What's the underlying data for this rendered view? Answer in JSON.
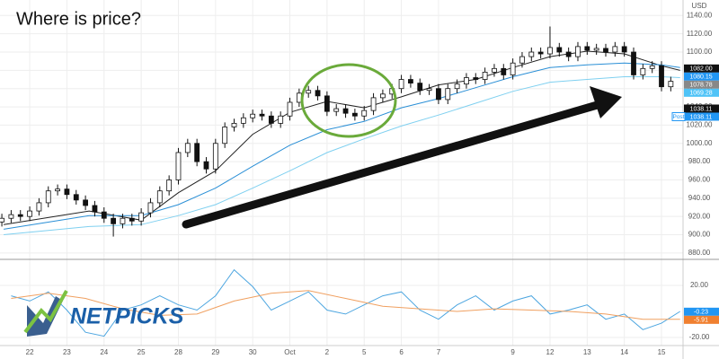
{
  "chart_data": [
    {
      "type": "candlestick",
      "title": "Where is price?",
      "currency": "USD",
      "watermark": "NETPICKS",
      "xlim": [
        -0.8,
        17.58
      ],
      "ylim": [
        874,
        1157
      ],
      "yticks": [
        {
          "value": 880,
          "label": "880.00"
        },
        {
          "value": 900,
          "label": "900.00"
        },
        {
          "value": 920,
          "label": "920.00"
        },
        {
          "value": 940,
          "label": "940.00"
        },
        {
          "value": 960,
          "label": "960.00"
        },
        {
          "value": 980,
          "label": "980.00"
        },
        {
          "value": 1000,
          "label": "1000.00"
        },
        {
          "value": 1020,
          "label": "1020.00"
        },
        {
          "value": 1040,
          "label": "1040.00"
        },
        {
          "value": 1060,
          "label": "1060.00"
        },
        {
          "value": 1080,
          "label": "1080.00"
        },
        {
          "value": 1100,
          "label": "1100.00"
        },
        {
          "value": 1120,
          "label": "1120.00"
        },
        {
          "value": 1140,
          "label": "1140.00"
        }
      ],
      "candles": {
        "up_color": "#ffffff",
        "down_color": "#111111",
        "x": [
          -0.75,
          -0.5,
          -0.25,
          0,
          0.25,
          0.5,
          0.75,
          1,
          1.25,
          1.5,
          1.75,
          2,
          2.25,
          2.5,
          2.75,
          3,
          3.25,
          3.5,
          3.75,
          4,
          4.25,
          4.5,
          4.75,
          5,
          5.25,
          5.5,
          5.75,
          6,
          6.25,
          6.5,
          6.75,
          7,
          7.25,
          7.5,
          7.75,
          8,
          8.25,
          8.5,
          8.75,
          9,
          9.25,
          9.5,
          9.75,
          10,
          10.25,
          10.5,
          10.75,
          11,
          11.25,
          11.5,
          11.75,
          12,
          12.25,
          12.5,
          12.75,
          13,
          13.25,
          13.5,
          13.75,
          14,
          14.25,
          14.5,
          14.75,
          15,
          15.25,
          15.5,
          15.75,
          16,
          16.25,
          16.5,
          16.75,
          17,
          17.25
        ],
        "open": [
          914,
          918,
          922,
          920,
          926,
          935,
          948,
          950,
          944,
          938,
          932,
          925,
          918,
          912,
          918,
          915,
          924,
          935,
          948,
          960,
          990,
          1000,
          980,
          972,
          1000,
          1018,
          1022,
          1028,
          1032,
          1030,
          1022,
          1030,
          1045,
          1055,
          1058,
          1052,
          1035,
          1038,
          1033,
          1030,
          1036,
          1050,
          1054,
          1060,
          1070,
          1066,
          1058,
          1060,
          1048,
          1060,
          1065,
          1072,
          1070,
          1078,
          1082,
          1075,
          1088,
          1095,
          1100,
          1098,
          1105,
          1100,
          1095,
          1106,
          1102,
          1104,
          1100,
          1106,
          1100,
          1075,
          1082,
          1085,
          1062
        ],
        "high": [
          923,
          927,
          927,
          931,
          940,
          953,
          955,
          955,
          949,
          943,
          937,
          930,
          923,
          923,
          923,
          929,
          940,
          953,
          965,
          995,
          1005,
          1005,
          985,
          1005,
          1023,
          1027,
          1033,
          1037,
          1037,
          1035,
          1035,
          1050,
          1060,
          1063,
          1063,
          1057,
          1043,
          1043,
          1038,
          1041,
          1055,
          1059,
          1065,
          1075,
          1075,
          1071,
          1065,
          1065,
          1065,
          1070,
          1077,
          1077,
          1083,
          1087,
          1087,
          1093,
          1100,
          1105,
          1105,
          1128,
          1110,
          1105,
          1111,
          1111,
          1109,
          1109,
          1111,
          1111,
          1105,
          1087,
          1090,
          1090,
          1073
        ],
        "low": [
          909,
          913,
          915,
          915,
          921,
          930,
          943,
          939,
          933,
          927,
          920,
          913,
          898,
          907,
          910,
          910,
          919,
          930,
          943,
          955,
          985,
          975,
          967,
          967,
          995,
          1013,
          1017,
          1023,
          1025,
          1017,
          1017,
          1025,
          1040,
          1050,
          1047,
          1030,
          1030,
          1028,
          1025,
          1025,
          1031,
          1045,
          1049,
          1055,
          1061,
          1053,
          1053,
          1043,
          1043,
          1055,
          1060,
          1065,
          1065,
          1073,
          1070,
          1070,
          1083,
          1090,
          1093,
          1093,
          1095,
          1090,
          1090,
          1097,
          1097,
          1095,
          1095,
          1095,
          1070,
          1070,
          1077,
          1057,
          1057
        ],
        "close": [
          918,
          922,
          920,
          926,
          935,
          948,
          950,
          944,
          938,
          932,
          925,
          918,
          912,
          918,
          915,
          924,
          935,
          948,
          960,
          990,
          1000,
          980,
          972,
          1000,
          1018,
          1022,
          1028,
          1032,
          1030,
          1022,
          1030,
          1045,
          1055,
          1058,
          1052,
          1035,
          1038,
          1033,
          1030,
          1036,
          1050,
          1054,
          1060,
          1070,
          1066,
          1058,
          1060,
          1048,
          1060,
          1065,
          1072,
          1070,
          1078,
          1082,
          1075,
          1088,
          1095,
          1100,
          1098,
          1105,
          1100,
          1095,
          1106,
          1102,
          1104,
          1100,
          1106,
          1100,
          1075,
          1082,
          1085,
          1062,
          1068
        ]
      },
      "series": [
        {
          "color": "#222222",
          "x": [
            -0.7,
            1.6,
            3,
            4,
            5,
            6,
            7,
            8,
            9,
            10,
            11,
            12,
            13,
            14,
            15,
            16,
            17,
            17.5
          ],
          "values": [
            911,
            926,
            916,
            946,
            970,
            1010,
            1034,
            1046,
            1039,
            1051,
            1064,
            1070,
            1083,
            1095,
            1101,
            1098,
            1085,
            1080
          ]
        },
        {
          "color": "#2a8fd6",
          "x": [
            -0.7,
            1.6,
            3,
            4,
            5,
            6,
            7,
            8,
            9,
            10,
            11,
            12,
            13,
            14,
            15,
            16,
            17,
            17.5
          ],
          "values": [
            906,
            921,
            921,
            933,
            951,
            975,
            998,
            1015,
            1024,
            1039,
            1049,
            1061,
            1073,
            1083,
            1086,
            1088,
            1086,
            1083
          ]
        },
        {
          "color": "#7fd0f0",
          "x": [
            -0.7,
            1.6,
            3,
            4,
            5,
            6,
            7,
            8,
            9,
            10,
            11,
            12,
            13,
            14,
            15,
            16,
            17,
            17.5
          ],
          "values": [
            900,
            909,
            911,
            921,
            933,
            951,
            970,
            990,
            1005,
            1019,
            1031,
            1044,
            1057,
            1067,
            1070,
            1073,
            1073,
            1072
          ]
        }
      ],
      "price_labels": [
        {
          "value": 1082,
          "label": "1082.00",
          "color": "#111111"
        },
        {
          "value": 1080.15,
          "color": "#2196f3"
        },
        {
          "value": 1078.78,
          "color": "#888888"
        },
        {
          "value": 1069.28,
          "color": "#4fc3f7"
        },
        {
          "value": 1038.11,
          "color": "#111111"
        },
        {
          "prefix": "Post",
          "value": 1038.11,
          "color": "#2196f3"
        }
      ]
    },
    {
      "type": "line",
      "xlim": [
        -0.8,
        17.58
      ],
      "ylim": [
        -26.2,
        39.3
      ],
      "yticks": [
        {
          "value": 20,
          "label": "20.00"
        },
        {
          "value": -20,
          "label": "-20.00"
        }
      ],
      "xticks": [
        {
          "value": 0,
          "label": "22"
        },
        {
          "value": 1,
          "label": "23"
        },
        {
          "value": 2,
          "label": "24"
        },
        {
          "value": 3,
          "label": "25"
        },
        {
          "value": 4,
          "label": "28"
        },
        {
          "value": 5,
          "label": "29"
        },
        {
          "value": 6,
          "label": "30"
        },
        {
          "value": 7,
          "label": "Oct"
        },
        {
          "value": 8,
          "label": "2"
        },
        {
          "value": 9,
          "label": "5"
        },
        {
          "value": 10,
          "label": "6"
        },
        {
          "value": 11,
          "label": "7"
        },
        {
          "value": 13,
          "label": "9"
        },
        {
          "value": 14,
          "label": "12"
        },
        {
          "value": 15,
          "label": "13"
        },
        {
          "value": 16,
          "label": "14"
        },
        {
          "value": 17,
          "label": "15"
        }
      ],
      "series": [
        {
          "color": "#4da6e0",
          "x": [
            -0.5,
            0,
            0.5,
            1,
            1.5,
            2,
            2.5,
            3,
            3.5,
            4,
            4.5,
            5,
            5.5,
            6,
            6.5,
            7,
            7.5,
            8,
            8.5,
            9,
            9.5,
            10,
            10.5,
            11,
            11.5,
            12,
            12.5,
            13,
            13.5,
            14,
            14.5,
            15,
            15.5,
            16,
            16.5,
            17,
            17.5
          ],
          "values": [
            12,
            8,
            15,
            1,
            -16,
            -19,
            1,
            5,
            12,
            5,
            1,
            12,
            32,
            19,
            1,
            8,
            15,
            1,
            -2,
            5,
            12,
            15,
            1,
            -6,
            5,
            12,
            1,
            8,
            12,
            -2,
            1,
            5,
            -6,
            -2,
            -14,
            -9,
            0
          ]
        },
        {
          "color": "#f0a060",
          "x": [
            -0.5,
            0.5,
            1.5,
            2.5,
            3.5,
            4.5,
            5.5,
            6.5,
            7.5,
            8.5,
            9.5,
            10.5,
            11.5,
            12.5,
            13.5,
            14.5,
            15.5,
            16.5,
            17.5
          ],
          "values": [
            10,
            14,
            10,
            2,
            -3,
            -2,
            8,
            14,
            16,
            10,
            4,
            2,
            0,
            2,
            1,
            0,
            -2,
            -6,
            -6
          ]
        }
      ],
      "price_labels": [
        {
          "value": -0.23,
          "color": "#2196f3"
        },
        {
          "value": -5.91,
          "color": "#f08030"
        }
      ]
    }
  ]
}
